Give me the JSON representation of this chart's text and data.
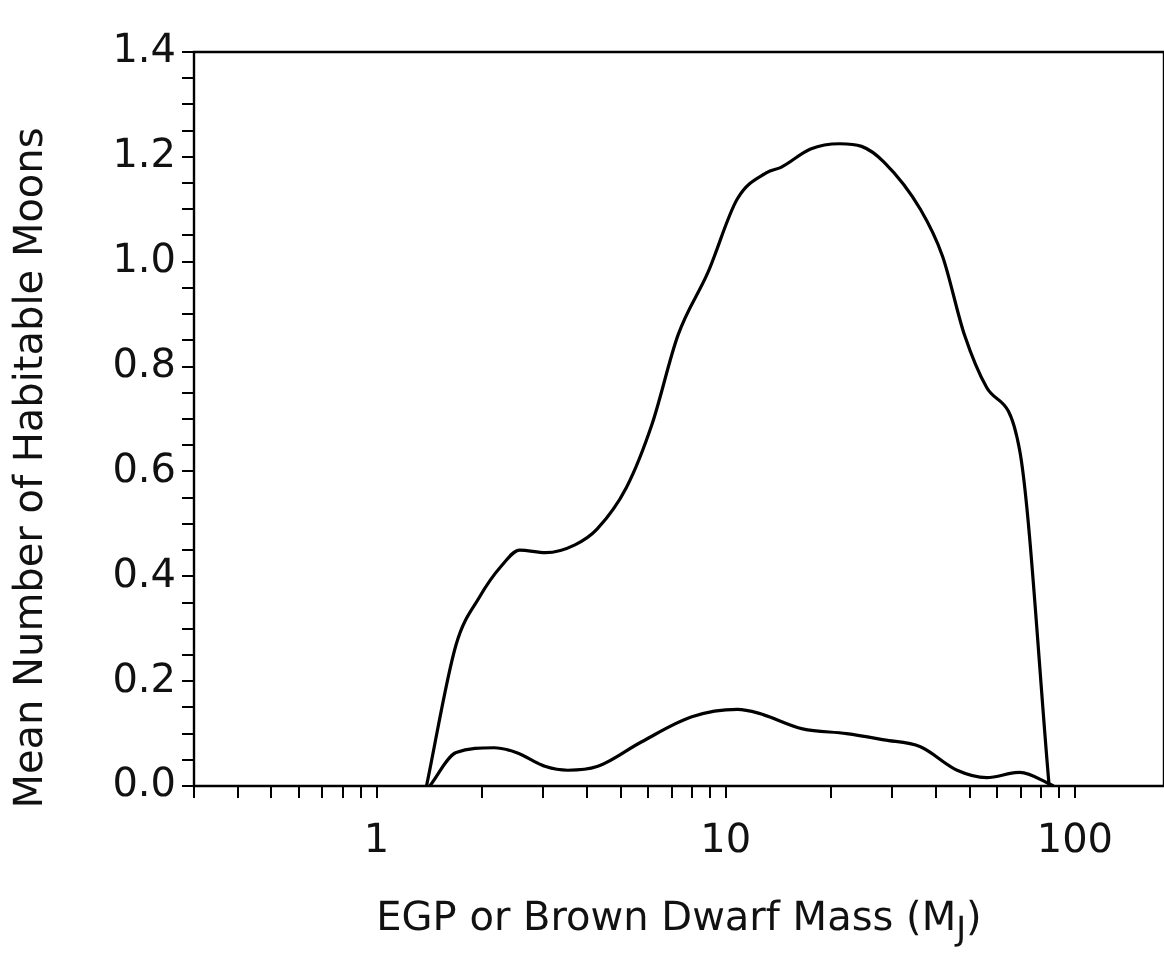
{
  "chart_data": {
    "type": "line",
    "xlabel": "EGP or Brown Dwarf Mass (M$_{J}$)",
    "ylabel": "Mean Number of Habitable Moons",
    "log": "x",
    "xlim": [
      0.3,
      180
    ],
    "xticks": [
      {
        "value": 0.3,
        "label": null
      },
      {
        "value": 0.4,
        "label": null
      },
      {
        "value": 0.5,
        "label": null
      },
      {
        "value": 0.6,
        "label": null
      },
      {
        "value": 0.7,
        "label": null
      },
      {
        "value": 0.8,
        "label": null
      },
      {
        "value": 0.9,
        "label": null
      },
      1,
      {
        "value": 2,
        "label": null
      },
      {
        "value": 3,
        "label": null
      },
      {
        "value": 4,
        "label": null
      },
      {
        "value": 5,
        "label": null
      },
      {
        "value": 6,
        "label": null
      },
      {
        "value": 7,
        "label": null
      },
      {
        "value": 8,
        "label": null
      },
      {
        "value": 9,
        "label": null
      },
      10,
      {
        "value": 20,
        "label": null
      },
      {
        "value": 30,
        "label": null
      },
      {
        "value": 40,
        "label": null
      },
      {
        "value": 50,
        "label": null
      },
      {
        "value": 60,
        "label": null
      },
      {
        "value": 70,
        "label": null
      },
      {
        "value": 80,
        "label": null
      },
      {
        "value": 90,
        "label": null
      },
      100
    ],
    "ylim": [
      0,
      1.4
    ],
    "yticks": [
      {
        "value": 0,
        "label": "0.0"
      },
      {
        "value": 0.05,
        "label": null
      },
      {
        "value": 0.1,
        "label": null
      },
      {
        "value": 0.15,
        "label": null
      },
      {
        "value": 0.2,
        "label": "0.2"
      },
      {
        "value": 0.25,
        "label": null
      },
      {
        "value": 0.3,
        "label": null
      },
      {
        "value": 0.35,
        "label": null
      },
      {
        "value": 0.4,
        "label": "0.4"
      },
      {
        "value": 0.45,
        "label": null
      },
      {
        "value": 0.5,
        "label": null
      },
      {
        "value": 0.55,
        "label": null
      },
      {
        "value": 0.6,
        "label": "0.6"
      },
      {
        "value": 0.65,
        "label": null
      },
      {
        "value": 0.7,
        "label": null
      },
      {
        "value": 0.75,
        "label": null
      },
      {
        "value": 0.8,
        "label": "0.8"
      },
      {
        "value": 0.85,
        "label": null
      },
      {
        "value": 0.9,
        "label": null
      },
      {
        "value": 0.95,
        "label": null
      },
      {
        "value": 1.0,
        "label": "1.0"
      },
      {
        "value": 1.05,
        "label": null
      },
      {
        "value": 1.1,
        "label": null
      },
      {
        "value": 1.15,
        "label": null
      },
      {
        "value": 1.2,
        "label": "1.2"
      },
      {
        "value": 1.25,
        "label": null
      },
      {
        "value": 1.3,
        "label": null
      },
      {
        "value": 1.35,
        "label": null
      },
      {
        "value": 1.4,
        "label": "1.4"
      }
    ],
    "grid": false,
    "legend": false,
    "marker": "none",
    "line_style": "solid",
    "series": [
      {
        "color": "#000000",
        "x": [
          1.39,
          1.69,
          1.97,
          2.28,
          2.57,
          3.05,
          3.7,
          4.28,
          5.2,
          6.15,
          7.3,
          8.9,
          10.8,
          13.1,
          14.4,
          17.5,
          21.2,
          24.5,
          28.4,
          36.1,
          41.8,
          48.3,
          55.9,
          69.5,
          84.4
        ],
        "values": [
          0,
          0.27,
          0.36,
          0.42,
          0.45,
          0.445,
          0.46,
          0.49,
          0.57,
          0.69,
          0.86,
          0.98,
          1.12,
          1.17,
          1.18,
          1.215,
          1.225,
          1.22,
          1.19,
          1.1,
          1.01,
          0.86,
          0.76,
          0.64,
          0
        ]
      },
      {
        "color": "#000000",
        "x": [
          1.42,
          1.69,
          2.17,
          2.51,
          3.05,
          3.53,
          4.28,
          5.73,
          8.0,
          10.8,
          12.4,
          16.6,
          22.2,
          28.4,
          36.1,
          46,
          55.9,
          69.5,
          87
        ],
        "values": [
          0,
          0.064,
          0.073,
          0.064,
          0.037,
          0.03,
          0.037,
          0.084,
          0.132,
          0.146,
          0.139,
          0.109,
          0.1,
          0.088,
          0.075,
          0.03,
          0.016,
          0.026,
          0
        ]
      }
    ]
  }
}
